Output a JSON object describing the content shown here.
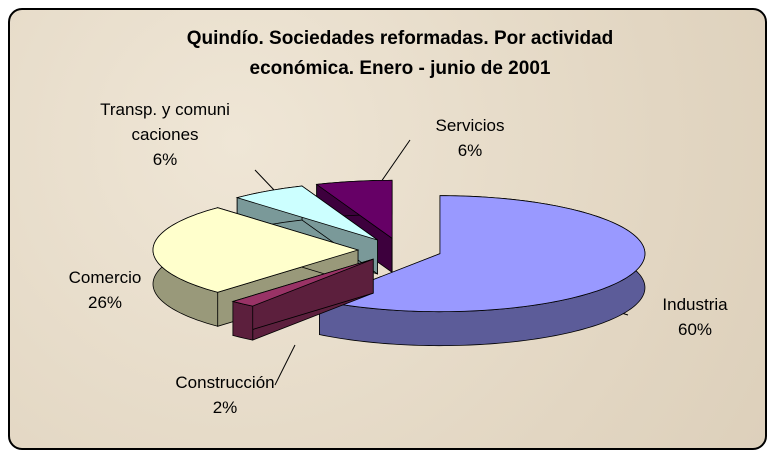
{
  "chart_data": {
    "type": "pie3d",
    "title": "Quindío. Sociedades reformadas. Por actividad económica. Enero - junio de 2001",
    "categories": [
      "Industria",
      "Construcción",
      "Comercio",
      "Transp. y comunicaciones",
      "Servicios"
    ],
    "values": [
      60,
      2,
      26,
      6,
      6
    ],
    "value_labels": [
      "60%",
      "2%",
      "26%",
      "6%",
      "6%"
    ],
    "colors": [
      "#9999ff",
      "#993366",
      "#ffffcc",
      "#ccffff",
      "#660066"
    ]
  }
}
